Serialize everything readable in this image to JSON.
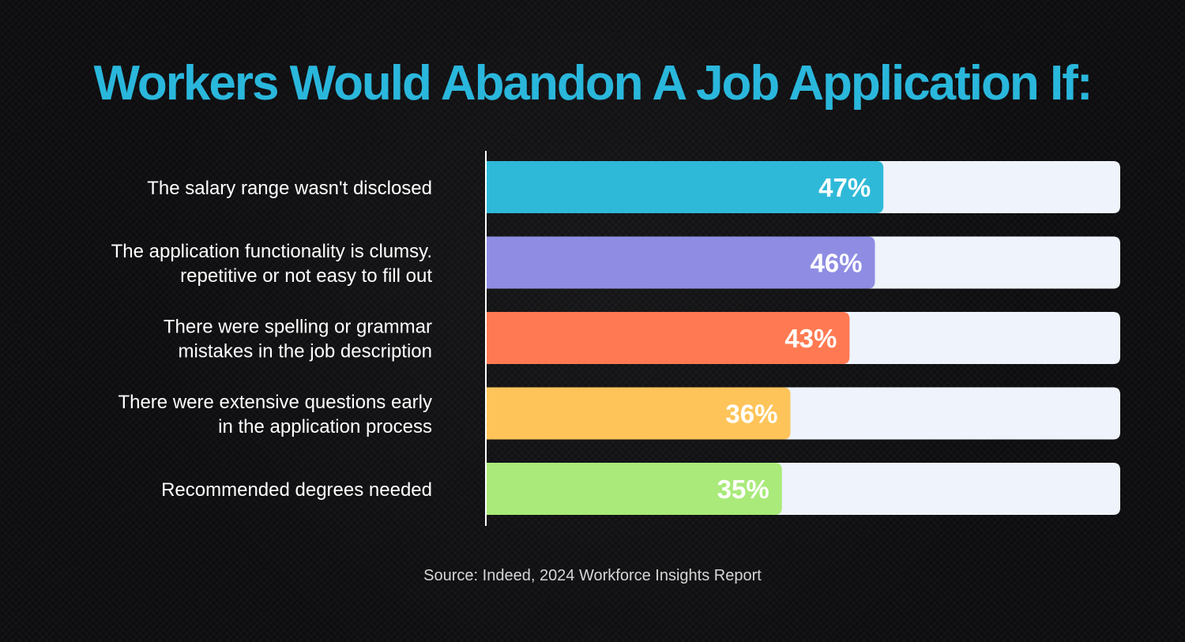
{
  "page": {
    "source": "Source: Indeed, 2024 Workforce Insights Report"
  },
  "chart_data": {
    "type": "bar",
    "orientation": "horizontal",
    "title": "Workers Would Abandon A Job Application If:",
    "categories": [
      [
        "The salary range wasn't disclosed"
      ],
      [
        "The application functionality is clumsy.",
        "repetitive or not easy to fill out"
      ],
      [
        "There were spelling or grammar",
        "mistakes in the job description"
      ],
      [
        "There were extensive questions early",
        "in the application process"
      ],
      [
        "Recommended degrees needed"
      ]
    ],
    "values": [
      47,
      46,
      43,
      36,
      35
    ],
    "value_labels": [
      "47%",
      "46%",
      "43%",
      "36%",
      "35%"
    ],
    "unit": "%",
    "xlim": [
      0,
      75
    ],
    "colors": [
      "#2fb9d8",
      "#8e8de3",
      "#ff7a52",
      "#fec45a",
      "#a9ea7a"
    ],
    "track_color": "#eef3fc",
    "title_color": "#2ab7dc",
    "grid": false,
    "legend": "none"
  }
}
